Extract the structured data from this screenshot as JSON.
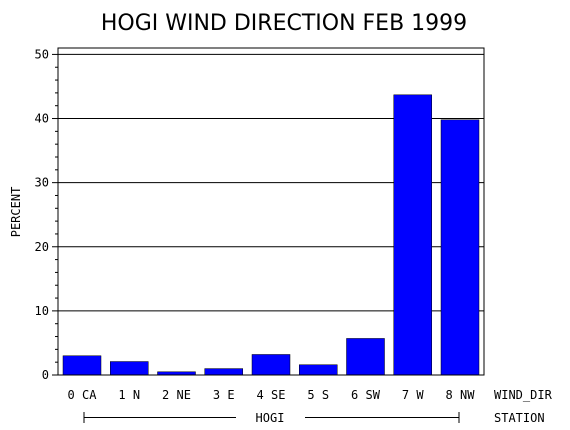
{
  "chart_data": {
    "type": "bar",
    "title": "HOGI WIND DIRECTION FEB 1999",
    "ylabel": "PERCENT",
    "xlabel": "WIND_DIR",
    "group_axis_label": "STATION",
    "group_label": "HOGI",
    "categories": [
      "0 CA",
      "1 N",
      "2 NE",
      "3 E",
      "4 SE",
      "5 S",
      "6 SW",
      "7 W",
      "8 NW"
    ],
    "values": [
      3.0,
      2.1,
      0.5,
      1.0,
      3.2,
      1.6,
      5.7,
      43.7,
      39.8
    ],
    "ylim": [
      0,
      51
    ],
    "yticks": [
      0,
      10,
      20,
      30,
      40,
      50
    ],
    "grid": true,
    "bar_color": "#0000ff"
  }
}
